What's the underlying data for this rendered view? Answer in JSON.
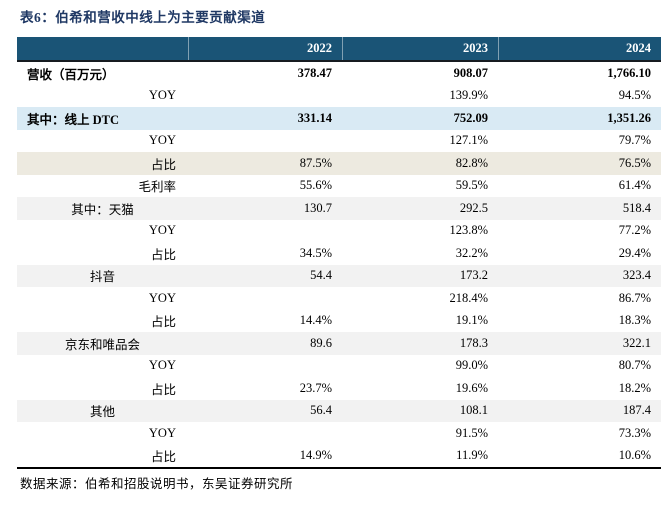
{
  "title": "表6：伯希和营收中线上为主要贡献渠道",
  "source_note": "数据来源：伯希和招股说明书，东吴证券研究所",
  "colors": {
    "header_bg": "#1A5476",
    "title_text": "#1F3864",
    "row_highlight_blue": "#D9EAF4",
    "row_highlight_beige": "#EDEAE0",
    "row_highlight_gray": "#F2F2F2"
  },
  "columns": [
    "2022",
    "2023",
    "2024"
  ],
  "rows": [
    {
      "label": "营收（百万元）",
      "align": "left",
      "bold": true,
      "bg": "white",
      "values": [
        "378.47",
        "908.07",
        "1,766.10"
      ]
    },
    {
      "label": "YOY",
      "align": "right",
      "bold": false,
      "bg": "white",
      "values": [
        "",
        "139.9%",
        "94.5%"
      ]
    },
    {
      "label": "其中：线上 DTC",
      "align": "left",
      "bold": true,
      "bg": "blue",
      "values": [
        "331.14",
        "752.09",
        "1,351.26"
      ]
    },
    {
      "label": "YOY",
      "align": "right",
      "bold": false,
      "bg": "white",
      "values": [
        "",
        "127.1%",
        "79.7%"
      ]
    },
    {
      "label": "占比",
      "align": "right",
      "bold": false,
      "bg": "beige",
      "values": [
        "87.5%",
        "82.8%",
        "76.5%"
      ]
    },
    {
      "label": "毛利率",
      "align": "right",
      "bold": false,
      "bg": "white",
      "values": [
        "55.6%",
        "59.5%",
        "61.4%"
      ]
    },
    {
      "label": "其中：天猫",
      "align": "center",
      "bold": false,
      "bg": "gray",
      "values": [
        "130.7",
        "292.5",
        "518.4"
      ]
    },
    {
      "label": "YOY",
      "align": "right",
      "bold": false,
      "bg": "white",
      "values": [
        "",
        "123.8%",
        "77.2%"
      ]
    },
    {
      "label": "占比",
      "align": "right",
      "bold": false,
      "bg": "white",
      "values": [
        "34.5%",
        "32.2%",
        "29.4%"
      ]
    },
    {
      "label": "抖音",
      "align": "center",
      "bold": false,
      "bg": "gray",
      "values": [
        "54.4",
        "173.2",
        "323.4"
      ]
    },
    {
      "label": "YOY",
      "align": "right",
      "bold": false,
      "bg": "white",
      "values": [
        "",
        "218.4%",
        "86.7%"
      ]
    },
    {
      "label": "占比",
      "align": "right",
      "bold": false,
      "bg": "white",
      "values": [
        "14.4%",
        "19.1%",
        "18.3%"
      ]
    },
    {
      "label": "京东和唯品会",
      "align": "center",
      "bold": false,
      "bg": "gray",
      "values": [
        "89.6",
        "178.3",
        "322.1"
      ]
    },
    {
      "label": "YOY",
      "align": "right",
      "bold": false,
      "bg": "white",
      "values": [
        "",
        "99.0%",
        "80.7%"
      ]
    },
    {
      "label": "占比",
      "align": "right",
      "bold": false,
      "bg": "white",
      "values": [
        "23.7%",
        "19.6%",
        "18.2%"
      ]
    },
    {
      "label": "其他",
      "align": "center",
      "bold": false,
      "bg": "gray",
      "values": [
        "56.4",
        "108.1",
        "187.4"
      ]
    },
    {
      "label": "YOY",
      "align": "right",
      "bold": false,
      "bg": "white",
      "values": [
        "",
        "91.5%",
        "73.3%"
      ]
    },
    {
      "label": "占比",
      "align": "right",
      "bold": false,
      "bg": "white",
      "values": [
        "14.9%",
        "11.9%",
        "10.6%"
      ]
    }
  ]
}
